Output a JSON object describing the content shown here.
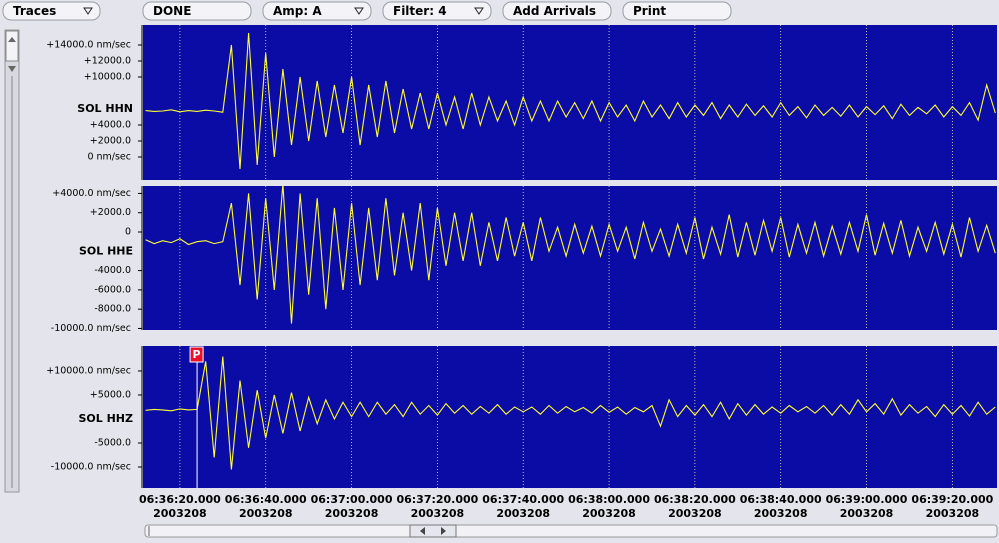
{
  "toolbar": {
    "buttons": [
      {
        "label": "Traces",
        "menu": true
      },
      {
        "label": "DONE",
        "menu": false
      },
      {
        "label": "Amp: A",
        "menu": true
      },
      {
        "label": "Filter: 4",
        "menu": true
      },
      {
        "label": "Add Arrivals",
        "menu": false
      },
      {
        "label": "Print",
        "menu": false
      }
    ]
  },
  "chart_data": {
    "type": "line",
    "grid": true,
    "background": "#0b0ba6",
    "xlim": [
      11.4,
      210.4
    ],
    "xticks": [
      {
        "value": 20,
        "label": "06:36:20.000"
      },
      {
        "value": 40,
        "label": "06:36:40.000"
      },
      {
        "value": 60,
        "label": "06:37:00.000"
      },
      {
        "value": 80,
        "label": "06:37:20.000"
      },
      {
        "value": 100,
        "label": "06:37:40.000"
      },
      {
        "value": 120,
        "label": "06:38:00.000"
      },
      {
        "value": 140,
        "label": "06:38:20.000"
      },
      {
        "value": 160,
        "label": "06:38:40.000"
      },
      {
        "value": 180,
        "label": "06:39:00.000"
      },
      {
        "value": 200,
        "label": "06:39:20.000"
      }
    ],
    "xtick_dates": [
      "2003208",
      "2003208",
      "2003208",
      "2003208",
      "2003208",
      "2003208",
      "2003208",
      "2003208",
      "2003208",
      "2003208"
    ],
    "x": [
      12,
      14,
      16,
      18,
      20,
      22,
      24,
      26,
      28,
      30,
      32,
      34,
      36,
      38,
      40,
      42,
      44,
      46,
      48,
      50,
      52,
      54,
      56,
      58,
      60,
      62,
      64,
      66,
      68,
      70,
      72,
      74,
      76,
      78,
      80,
      82,
      84,
      86,
      88,
      90,
      92,
      94,
      96,
      98,
      100,
      102,
      104,
      106,
      108,
      110,
      112,
      114,
      116,
      118,
      120,
      122,
      124,
      126,
      128,
      130,
      132,
      134,
      136,
      138,
      140,
      142,
      144,
      146,
      148,
      150,
      152,
      154,
      156,
      158,
      160,
      162,
      164,
      166,
      168,
      170,
      172,
      174,
      176,
      178,
      180,
      182,
      184,
      186,
      188,
      190,
      192,
      194,
      196,
      198,
      200,
      202,
      204,
      206,
      208,
      210
    ],
    "panels": [
      {
        "name": "SOL HHN",
        "color": "#ffff33",
        "ylim": [
          -2875,
          16500
        ],
        "yticks": [
          {
            "value": 14000,
            "label": "+14000.0 nm/sec"
          },
          {
            "value": 12000,
            "label": "+12000.0"
          },
          {
            "value": 10000,
            "label": "+10000.0"
          },
          {
            "value": 4000,
            "label": "+4000.0"
          },
          {
            "value": 2000,
            "label": "+2000.0"
          },
          {
            "value": 0,
            "label": "0 nm/sec"
          }
        ],
        "name_value": 6000,
        "values": [
          5800,
          5700,
          5750,
          5900,
          5650,
          5800,
          5700,
          5850,
          5750,
          5600,
          14000,
          -1500,
          15500,
          -1000,
          13000,
          0,
          11000,
          1500,
          10000,
          2000,
          9500,
          2500,
          9000,
          3000,
          10000,
          1500,
          9000,
          2500,
          9500,
          3000,
          8500,
          3500,
          8000,
          3500,
          8000,
          4000,
          7500,
          3500,
          8000,
          4000,
          7500,
          4500,
          7000,
          4000,
          7500,
          4500,
          7000,
          4500,
          7000,
          5000,
          6800,
          4800,
          7000,
          4500,
          6800,
          5000,
          6500,
          4500,
          7000,
          5000,
          6500,
          4800,
          6800,
          5000,
          6500,
          5200,
          6800,
          4800,
          6500,
          5000,
          6600,
          5200,
          6400,
          5000,
          6800,
          5200,
          6300,
          4900,
          6500,
          5200,
          6200,
          5100,
          6500,
          5000,
          6300,
          5300,
          6400,
          4800,
          6600,
          5200,
          6200,
          5400,
          6500,
          5000,
          6300,
          5200,
          6800,
          4600,
          9000,
          5500
        ]
      },
      {
        "name": "SOL HHE",
        "color": "#ffff33",
        "ylim": [
          -10160,
          4770
        ],
        "yticks": [
          {
            "value": 4000,
            "label": "+4000.0 nm/sec"
          },
          {
            "value": 2000,
            "label": "+2000.0"
          },
          0,
          {
            "value": -4000,
            "label": "-4000.0"
          },
          {
            "value": -6000,
            "label": "-6000.0"
          },
          {
            "value": -8000,
            "label": "-8000.0"
          },
          {
            "value": -10000,
            "label": "-10000.0 nm/sec"
          }
        ],
        "name_value": -2000,
        "values": [
          -800,
          -1200,
          -900,
          -1100,
          -700,
          -1300,
          -1000,
          -900,
          -1200,
          -1000,
          3000,
          -5500,
          4000,
          -7000,
          3500,
          -6000,
          5000,
          -9500,
          4000,
          -6500,
          3500,
          -8000,
          2500,
          -6000,
          3000,
          -5500,
          2500,
          -5000,
          3500,
          -4500,
          2000,
          -4000,
          3000,
          -5000,
          2500,
          -3500,
          2000,
          -3000,
          2000,
          -3500,
          1000,
          -3000,
          1500,
          -2500,
          1000,
          -3000,
          1500,
          -2000,
          500,
          -2500,
          800,
          -2200,
          600,
          -2500,
          800,
          -2000,
          500,
          -2800,
          1000,
          -2000,
          300,
          -2500,
          800,
          -2200,
          1500,
          -2800,
          500,
          -2300,
          1800,
          -2600,
          1000,
          -2400,
          1200,
          -2000,
          1500,
          -2600,
          800,
          -2200,
          1000,
          -2500,
          600,
          -2300,
          1000,
          -2000,
          1800,
          -2400,
          900,
          -2200,
          1200,
          -2500,
          500,
          -2000,
          1000,
          -2300,
          800,
          -2600,
          1500,
          -2000,
          700,
          -2200
        ]
      },
      {
        "name": "SOL HHZ",
        "color": "#ffff33",
        "ylim": [
          -14375,
          15200
        ],
        "yticks": [
          {
            "value": 10000,
            "label": "+10000.0 nm/sec"
          },
          {
            "value": 5000,
            "label": "+5000.0"
          },
          {
            "value": -5000,
            "label": "-5000.0"
          },
          {
            "value": -10000,
            "label": "-10000.0 nm/sec"
          }
        ],
        "name_value": 0,
        "pick": {
          "label": "P",
          "x": 24,
          "color": "#e8102a"
        },
        "values": [
          1800,
          2000,
          1900,
          1700,
          2100,
          1900,
          2000,
          12000,
          -8000,
          13000,
          -10500,
          8000,
          -6000,
          6000,
          -4000,
          5000,
          -3000,
          5500,
          -2500,
          4500,
          -1000,
          4000,
          0,
          3500,
          500,
          3500,
          500,
          3500,
          1000,
          3000,
          500,
          3500,
          1000,
          2800,
          800,
          3200,
          1200,
          2800,
          1000,
          2600,
          1200,
          3000,
          1000,
          2500,
          1500,
          2500,
          1000,
          2800,
          1200,
          2600,
          1500,
          2400,
          1200,
          2800,
          1400,
          2500,
          1000,
          2400,
          1500,
          2800,
          -1500,
          4000,
          500,
          2800,
          800,
          3000,
          500,
          3500,
          0,
          3200,
          800,
          3000,
          1000,
          2500,
          1200,
          2800,
          1500,
          2600,
          1200,
          2800,
          800,
          3000,
          1000,
          4000,
          1500,
          3200,
          1000,
          4200,
          800,
          3000,
          1200,
          2600,
          500,
          3000,
          1000,
          2800,
          600,
          3500,
          1000,
          2500
        ]
      }
    ]
  }
}
